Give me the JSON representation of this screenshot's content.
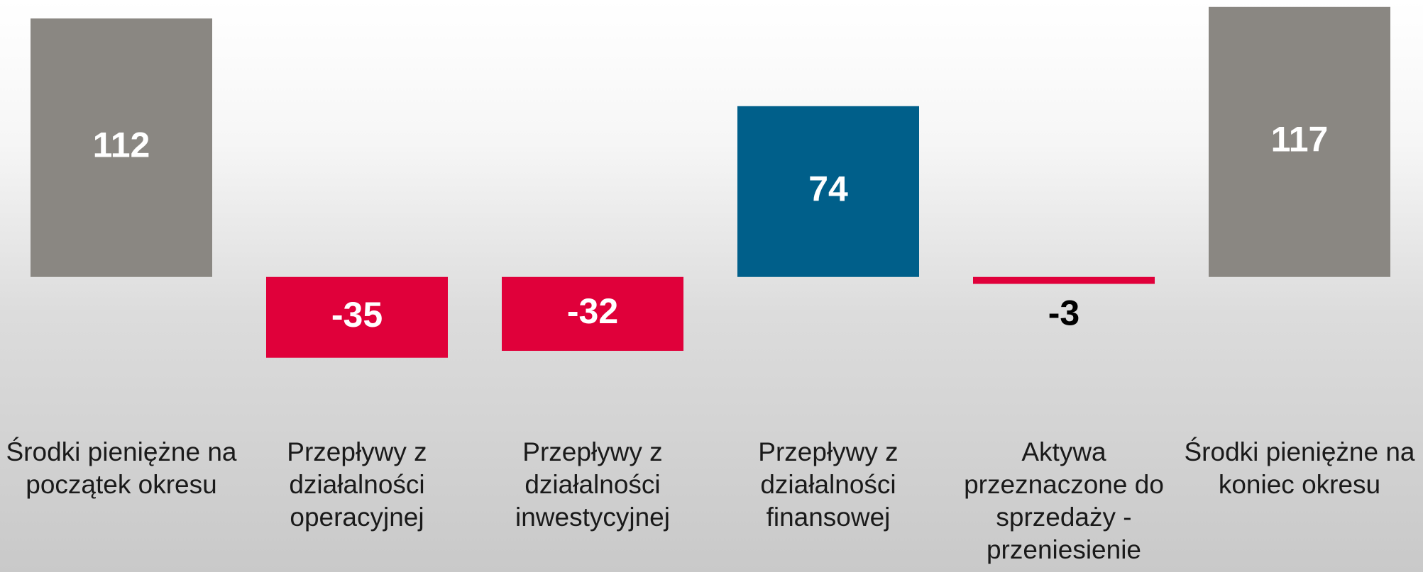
{
  "chart_data": {
    "type": "bar",
    "categories": [
      "Środki pieniężne na początek okresu",
      "Przepływy z działalności operacyjnej",
      "Przepływy z działalności inwestycyjnej",
      "Przepływy z działalności finansowej",
      "Aktywa przeznaczone do sprzedaży - przeniesienie",
      "Środki pieniężne na koniec okresu"
    ],
    "values": [
      112,
      -35,
      -32,
      74,
      -3,
      117
    ],
    "colors": [
      "#8a8782",
      "#e0003a",
      "#e0003a",
      "#005f8a",
      "#e0003a",
      "#8a8782"
    ],
    "ylim": [
      -40,
      120
    ]
  }
}
